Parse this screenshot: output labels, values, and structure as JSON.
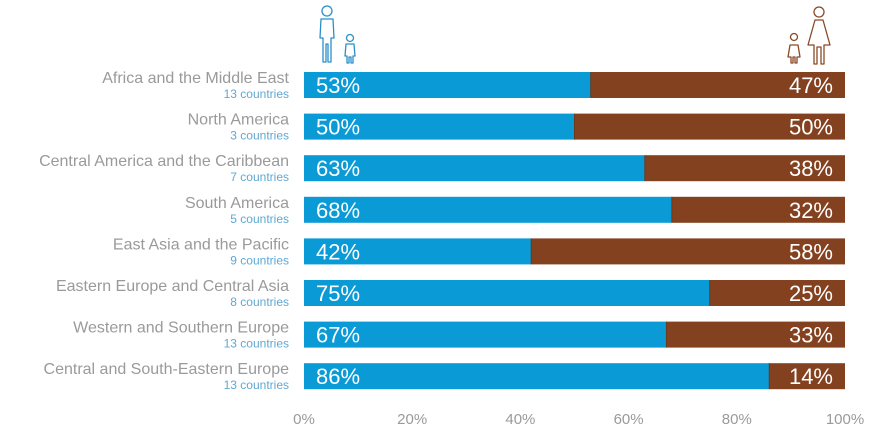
{
  "chart_data": {
    "type": "bar",
    "orientation": "horizontal",
    "stacked": true,
    "categories": [
      "Africa and the Middle East",
      "North America",
      "Central America and the Caribbean",
      "South America",
      "East Asia and the Pacific",
      "Eastern Europe and Central Asia",
      "Western and Southern Europe",
      "Central and South-Eastern Europe"
    ],
    "category_notes": [
      "13 countries",
      "3 countries",
      "7 countries",
      "5 countries",
      "9 countries",
      "8 countries",
      "13 countries",
      "13 countries"
    ],
    "series": [
      {
        "values": [
          53,
          50,
          63,
          68,
          42,
          75,
          67,
          86
        ],
        "labels": [
          "53%",
          "50%",
          "63%",
          "68%",
          "42%",
          "75%",
          "67%",
          "86%"
        ],
        "color": "#0a9ad6",
        "icon": "man-and-boy-icon"
      },
      {
        "values": [
          47,
          50,
          38,
          32,
          58,
          25,
          33,
          14
        ],
        "labels": [
          "47%",
          "50%",
          "38%",
          "32%",
          "58%",
          "25%",
          "33%",
          "14%"
        ],
        "color": "#84411f",
        "icon": "woman-and-girl-icon"
      }
    ],
    "xlim": [
      0,
      100
    ],
    "x_ticks": [
      0,
      20,
      40,
      60,
      80,
      100
    ],
    "x_tick_labels": [
      "0%",
      "20%",
      "40%",
      "60%",
      "80%",
      "100%"
    ],
    "grid": false,
    "legend": "icons above the bars, top-left and top-right",
    "title": "",
    "xlabel": "",
    "ylabel": ""
  }
}
